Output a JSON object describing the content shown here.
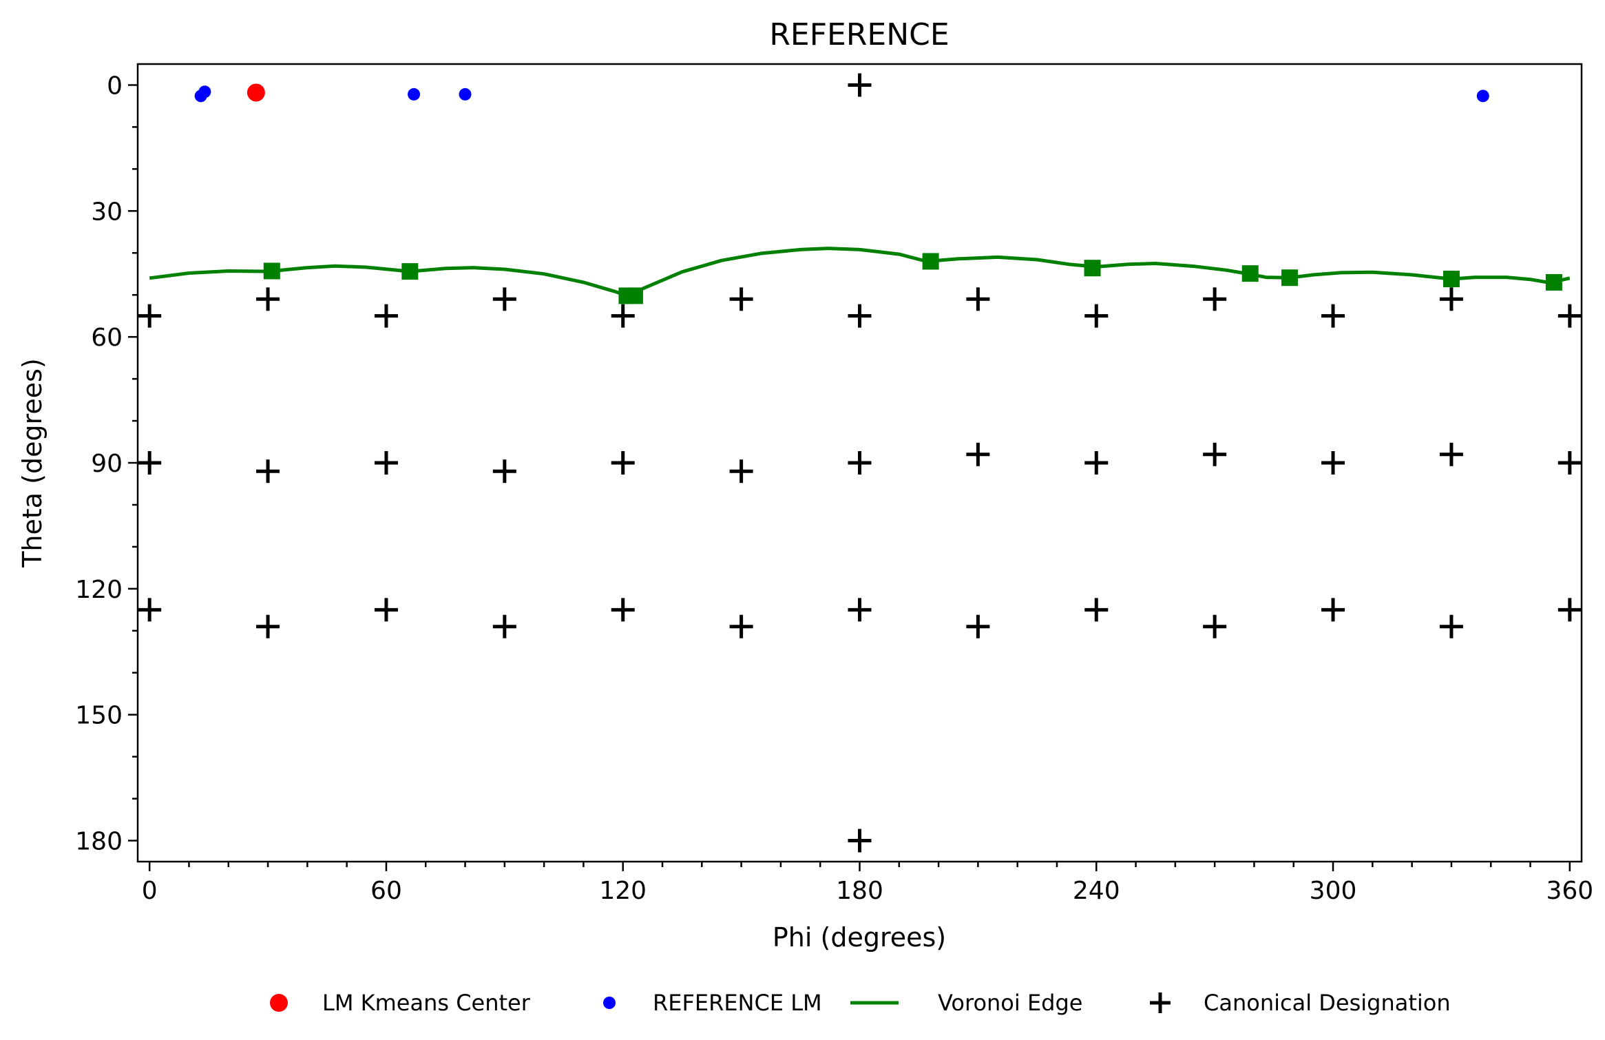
{
  "chart_data": {
    "type": "scatter",
    "title": "REFERENCE",
    "xlabel": "Phi (degrees)",
    "ylabel": "Theta (degrees)",
    "xlim": [
      -3,
      363
    ],
    "ylim": [
      185,
      -5
    ],
    "y_inverted": true,
    "xticks": [
      0,
      60,
      120,
      180,
      240,
      300,
      360
    ],
    "yticks": [
      0,
      30,
      60,
      90,
      120,
      150,
      180
    ],
    "x_minor_step": 10,
    "y_minor_step": 10,
    "grid": false,
    "legend": {
      "placement": "below",
      "entries": [
        {
          "label": "LM Kmeans Center",
          "marker": "circle",
          "color": "#ff0000"
        },
        {
          "label": "REFERENCE LM",
          "marker": "circle",
          "color": "#0000ff"
        },
        {
          "label": "Voronoi Edge",
          "marker": "line",
          "color": "#008000"
        },
        {
          "label": "Canonical Designation",
          "marker": "plus",
          "color": "#000000"
        }
      ]
    },
    "series": [
      {
        "name": "LM Kmeans Center",
        "color": "#ff0000",
        "marker": "circle",
        "points": [
          [
            27,
            1.8
          ]
        ]
      },
      {
        "name": "REFERENCE LM",
        "color": "#0000ff",
        "marker": "circle",
        "points": [
          [
            13,
            2.6
          ],
          [
            14,
            1.6
          ],
          [
            67,
            2.2
          ],
          [
            80,
            2.2
          ],
          [
            338,
            2.6
          ]
        ]
      },
      {
        "name": "Voronoi Edge",
        "color": "#008000",
        "marker": "line",
        "curve": [
          [
            0,
            46.0
          ],
          [
            10,
            44.8
          ],
          [
            20,
            44.3
          ],
          [
            30,
            44.4
          ],
          [
            40,
            43.5
          ],
          [
            47,
            43.1
          ],
          [
            55,
            43.4
          ],
          [
            66,
            44.4
          ],
          [
            75,
            43.7
          ],
          [
            82,
            43.5
          ],
          [
            90,
            43.9
          ],
          [
            100,
            45.0
          ],
          [
            110,
            47.0
          ],
          [
            118,
            49.2
          ],
          [
            121,
            50.2
          ],
          [
            125,
            48.5
          ],
          [
            135,
            44.5
          ],
          [
            145,
            41.8
          ],
          [
            155,
            40.1
          ],
          [
            165,
            39.2
          ],
          [
            172,
            38.9
          ],
          [
            180,
            39.2
          ],
          [
            190,
            40.3
          ],
          [
            197,
            42.0
          ],
          [
            205,
            41.4
          ],
          [
            215,
            41.0
          ],
          [
            225,
            41.6
          ],
          [
            233,
            42.7
          ],
          [
            240,
            43.3
          ],
          [
            248,
            42.7
          ],
          [
            255,
            42.5
          ],
          [
            265,
            43.2
          ],
          [
            273,
            44.1
          ],
          [
            278,
            44.9
          ],
          [
            283,
            45.8
          ],
          [
            289,
            45.9
          ],
          [
            295,
            45.2
          ],
          [
            302,
            44.7
          ],
          [
            310,
            44.6
          ],
          [
            320,
            45.2
          ],
          [
            330,
            46.2
          ],
          [
            336,
            45.8
          ],
          [
            344,
            45.8
          ],
          [
            350,
            46.3
          ],
          [
            355,
            47.1
          ],
          [
            360,
            46.0
          ]
        ],
        "vertices": [
          [
            31,
            44.3
          ],
          [
            66,
            44.4
          ],
          [
            121,
            50.2
          ],
          [
            123,
            50.2
          ],
          [
            198,
            42.0
          ],
          [
            239,
            43.6
          ],
          [
            279,
            44.9
          ],
          [
            289,
            45.9
          ],
          [
            330,
            46.2
          ],
          [
            356,
            47.0
          ]
        ]
      },
      {
        "name": "Canonical Designation",
        "color": "#000000",
        "marker": "plus",
        "points": [
          [
            180,
            0
          ],
          [
            30,
            51
          ],
          [
            90,
            51
          ],
          [
            150,
            51
          ],
          [
            210,
            51
          ],
          [
            270,
            51
          ],
          [
            330,
            51
          ],
          [
            0,
            55
          ],
          [
            60,
            55
          ],
          [
            120,
            55
          ],
          [
            180,
            55
          ],
          [
            240,
            55
          ],
          [
            300,
            55
          ],
          [
            360,
            55
          ],
          [
            0,
            90
          ],
          [
            60,
            90
          ],
          [
            120,
            90
          ],
          [
            180,
            90
          ],
          [
            240,
            90
          ],
          [
            300,
            90
          ],
          [
            360,
            90
          ],
          [
            30,
            92
          ],
          [
            90,
            92
          ],
          [
            150,
            92
          ],
          [
            210,
            88
          ],
          [
            270,
            88
          ],
          [
            330,
            88
          ],
          [
            0,
            125
          ],
          [
            60,
            125
          ],
          [
            120,
            125
          ],
          [
            180,
            125
          ],
          [
            240,
            125
          ],
          [
            300,
            125
          ],
          [
            360,
            125
          ],
          [
            30,
            129
          ],
          [
            90,
            129
          ],
          [
            150,
            129
          ],
          [
            210,
            129
          ],
          [
            270,
            129
          ],
          [
            330,
            129
          ],
          [
            180,
            180
          ]
        ]
      }
    ]
  }
}
